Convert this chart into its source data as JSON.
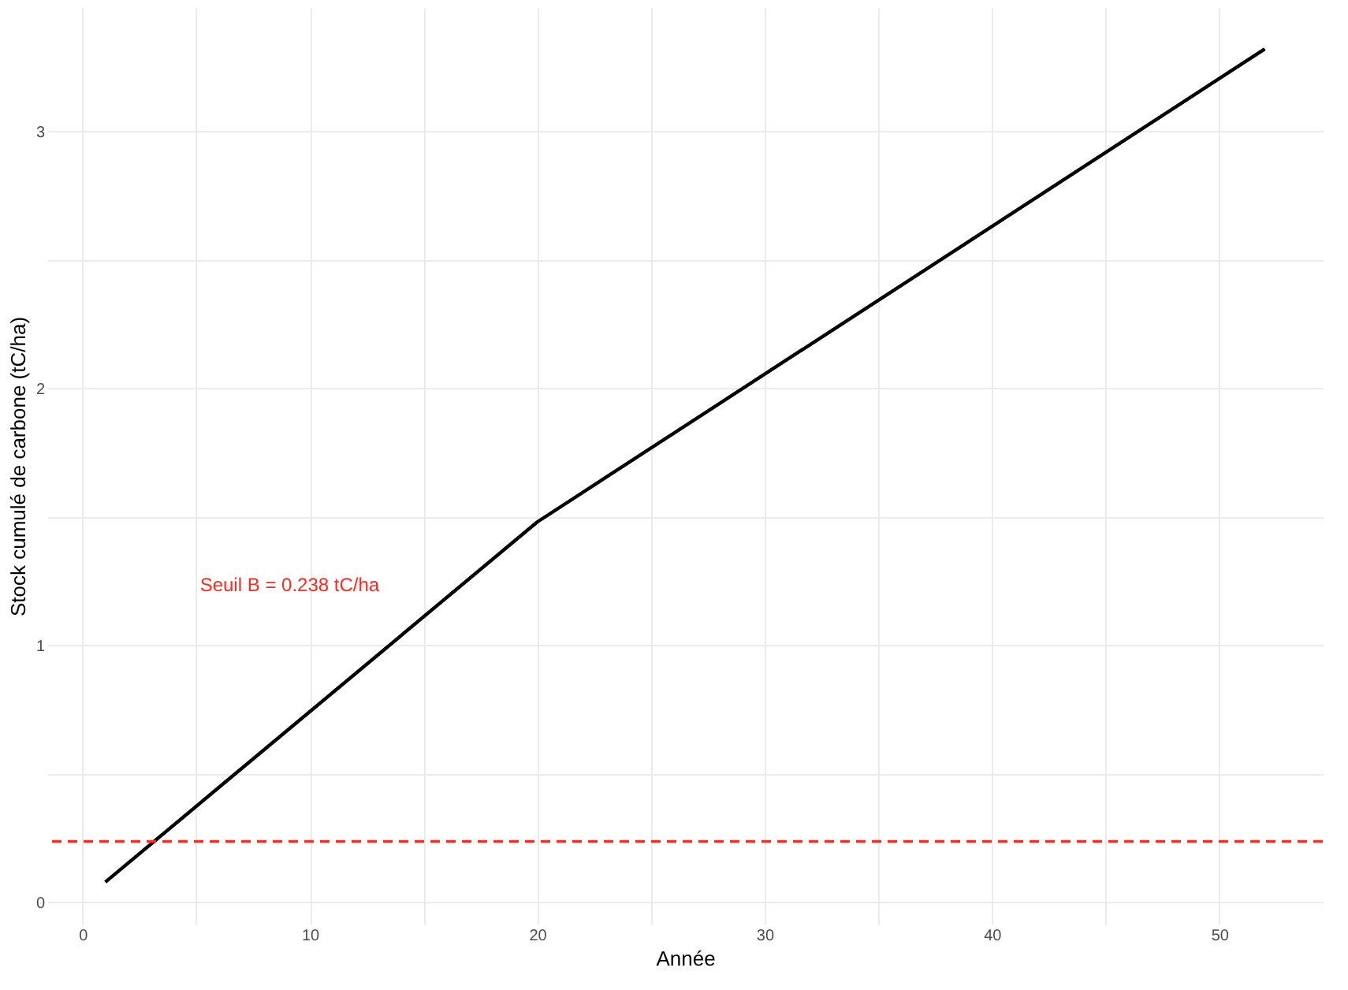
{
  "chart_data": {
    "type": "line",
    "xlabel": "Année",
    "ylabel": "Stock cumulé de carbone (tC/ha)",
    "x": [
      1,
      20,
      52
    ],
    "series": [
      {
        "color": "#000000",
        "values": [
          0.079,
          1.48,
          3.32
        ]
      }
    ],
    "xlim": [
      -1.55,
      54.55
    ],
    "ylim": [
      -0.083,
      3.48
    ],
    "xticks": [
      0,
      {
        "value": 5,
        "label": null
      },
      10,
      {
        "value": 15,
        "label": null
      },
      20,
      {
        "value": 25,
        "label": null
      },
      30,
      {
        "value": 35,
        "label": null
      },
      40,
      {
        "value": 45,
        "label": null
      },
      50
    ],
    "yticks": [
      0,
      {
        "value": 0.5,
        "label": null
      },
      1,
      {
        "value": 1.5,
        "label": null
      },
      2,
      {
        "value": 2.5,
        "label": null
      },
      3
    ],
    "ref_lines": [
      {
        "axis": "y",
        "value": 0.238,
        "color": "#ff2a1f",
        "line_style": "dashed"
      }
    ],
    "annotations": [
      "Seuil B = 0.238 tC/ha"
    ],
    "grid": true,
    "marker": "none",
    "line_style": "solid"
  }
}
